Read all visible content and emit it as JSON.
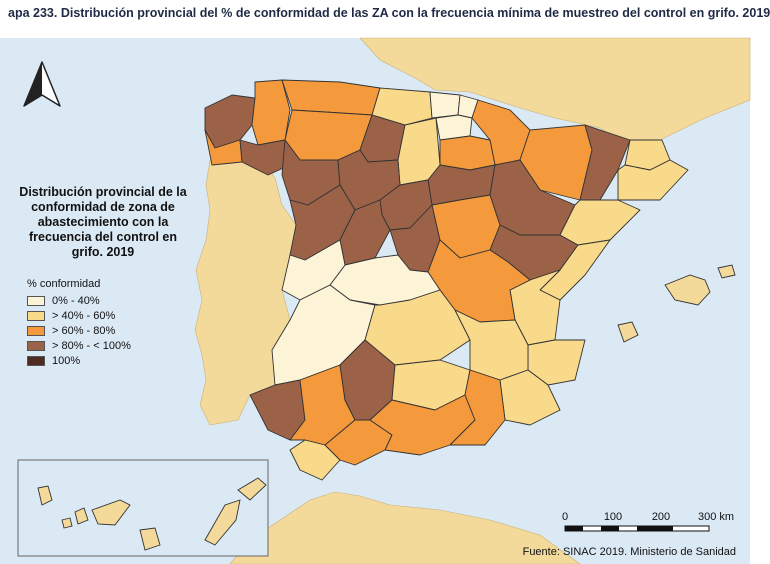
{
  "caption": "apa 233. Distribución provincial del % de conformidad de las ZA con la frecuencia mínima de muestreo del control en grifo. 2019",
  "map_title_lines": [
    "Distribución provincial de la",
    "conformidad de zona de",
    "abastecimiento con la",
    "frecuencia del control en",
    "grifo. 2019"
  ],
  "legend": {
    "heading": "% conformidad",
    "items": [
      {
        "label": "0% - 40%",
        "color": "#fdf4d8"
      },
      {
        "label": "> 40% - 60%",
        "color": "#f9d98a"
      },
      {
        "label": "> 60% - 80%",
        "color": "#f59a3c"
      },
      {
        "label": "> 80% - < 100%",
        "color": "#9b6248"
      },
      {
        "label": "100%",
        "color": "#4e2c22"
      }
    ]
  },
  "scale": {
    "labels": [
      "0",
      "100",
      "200",
      "300 km"
    ]
  },
  "source": "Fuente: SINAC 2019. Ministerio de Sanidad",
  "colors": {
    "sea": "#dbe9f5",
    "land_other": "#f3d99a",
    "border": "#333333"
  },
  "icons": {
    "north_arrow": "north-arrow-icon"
  }
}
